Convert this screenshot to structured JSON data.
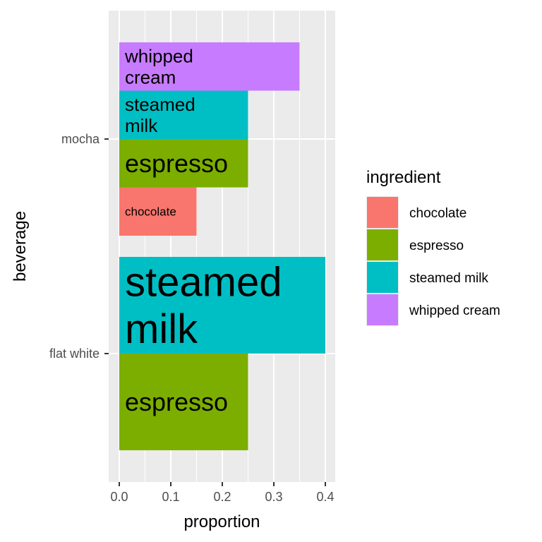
{
  "chart_data": {
    "type": "bar",
    "orientation": "horizontal",
    "stacking": "dodge",
    "xlabel": "proportion",
    "ylabel": "beverage",
    "xlim": [
      0,
      0.42
    ],
    "x_ticks": [
      "0.0",
      "0.1",
      "0.2",
      "0.3",
      "0.4"
    ],
    "categories": [
      "flat white",
      "mocha"
    ],
    "legend": {
      "title": "ingredient",
      "position": "right",
      "entries": [
        {
          "name": "chocolate",
          "color": "#F8766D"
        },
        {
          "name": "espresso",
          "color": "#7CAE00"
        },
        {
          "name": "steamed milk",
          "color": "#00BFC4"
        },
        {
          "name": "whipped cream",
          "color": "#C77CFF"
        }
      ]
    },
    "bars": [
      {
        "beverage": "flat white",
        "ingredient": "espresso",
        "value": 0.25,
        "label_lines": [
          "espresso"
        ],
        "label_size": "large"
      },
      {
        "beverage": "flat white",
        "ingredient": "steamed milk",
        "value": 0.4,
        "label_lines": [
          "steamed",
          "milk"
        ],
        "label_size": "huge"
      },
      {
        "beverage": "mocha",
        "ingredient": "chocolate",
        "value": 0.15,
        "label_lines": [
          "chocolate"
        ],
        "label_size": "small"
      },
      {
        "beverage": "mocha",
        "ingredient": "espresso",
        "value": 0.25,
        "label_lines": [
          "espresso"
        ],
        "label_size": "large"
      },
      {
        "beverage": "mocha",
        "ingredient": "steamed milk",
        "value": 0.25,
        "label_lines": [
          "steamed",
          "milk"
        ],
        "label_size": "medium"
      },
      {
        "beverage": "mocha",
        "ingredient": "whipped cream",
        "value": 0.35,
        "label_lines": [
          "whipped",
          "cream"
        ],
        "label_size": "medium"
      }
    ],
    "grid": true,
    "panel_background": "#EBEBEB"
  }
}
